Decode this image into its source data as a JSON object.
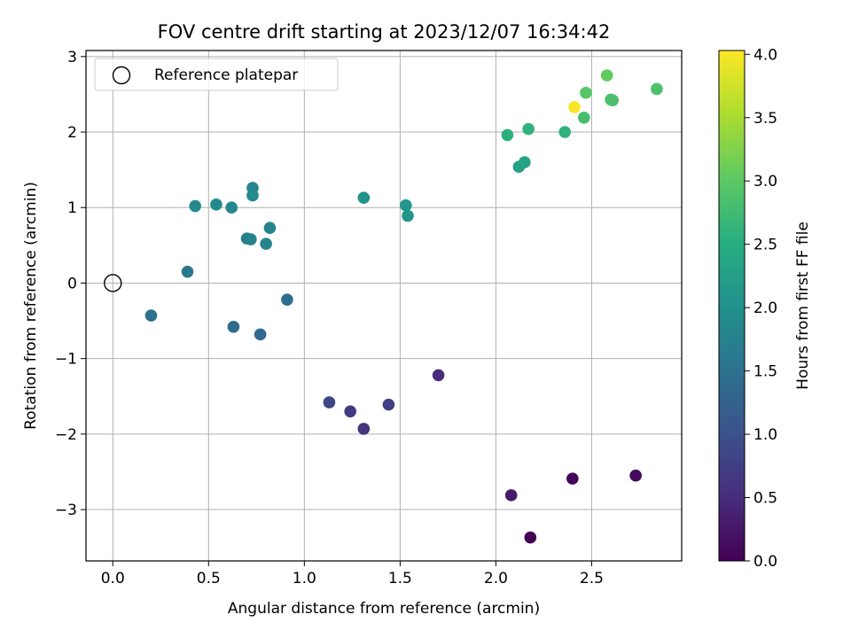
{
  "chart_data": {
    "type": "scatter",
    "title": "FOV centre drift starting at 2023/12/07 16:34:42",
    "xlabel": "Angular distance from reference (arcmin)",
    "ylabel": "Rotation from reference (arcmin)",
    "xlim": [
      -0.14,
      2.97
    ],
    "ylim": [
      -3.68,
      3.08
    ],
    "xticks": [
      0.0,
      0.5,
      1.0,
      1.5,
      2.0,
      2.5
    ],
    "xtick_labels": [
      "0.0",
      "0.5",
      "1.0",
      "1.5",
      "2.0",
      "2.5"
    ],
    "yticks": [
      -3,
      -2,
      -1,
      0,
      1,
      2,
      3
    ],
    "ytick_labels": [
      "−3",
      "−2",
      "−1",
      "0",
      "1",
      "2",
      "3"
    ],
    "grid": true,
    "legend": {
      "placement": "top-left",
      "entries": [
        {
          "label": "Reference platepar",
          "marker": "open-circle"
        }
      ]
    },
    "reference_point": {
      "x": 0.0,
      "y": 0.0
    },
    "colorbar": {
      "label": "Hours from first FF file",
      "colormap": "viridis",
      "range": [
        0.0,
        4.03
      ],
      "ticks": [
        0.0,
        0.5,
        1.0,
        1.5,
        2.0,
        2.5,
        3.0,
        3.5,
        4.0
      ],
      "tick_labels": [
        "0.0",
        "0.5",
        "1.0",
        "1.5",
        "2.0",
        "2.5",
        "3.0",
        "3.5",
        "4.0"
      ]
    },
    "points": [
      {
        "x": 2.18,
        "y": -3.37,
        "c": 0.0
      },
      {
        "x": 2.4,
        "y": -2.59,
        "c": 0.05
      },
      {
        "x": 2.73,
        "y": -2.55,
        "c": 0.1
      },
      {
        "x": 2.08,
        "y": -2.81,
        "c": 0.3
      },
      {
        "x": 1.7,
        "y": -1.22,
        "c": 0.5
      },
      {
        "x": 1.31,
        "y": -1.93,
        "c": 0.6
      },
      {
        "x": 1.24,
        "y": -1.7,
        "c": 0.7
      },
      {
        "x": 1.44,
        "y": -1.61,
        "c": 0.75
      },
      {
        "x": 1.13,
        "y": -1.58,
        "c": 0.85
      },
      {
        "x": 0.77,
        "y": -0.68,
        "c": 1.35
      },
      {
        "x": 0.63,
        "y": -0.58,
        "c": 1.4
      },
      {
        "x": 0.91,
        "y": -0.22,
        "c": 1.45
      },
      {
        "x": 0.2,
        "y": -0.43,
        "c": 1.5
      },
      {
        "x": 0.39,
        "y": 0.15,
        "c": 1.6
      },
      {
        "x": 0.7,
        "y": 0.59,
        "c": 1.7
      },
      {
        "x": 0.72,
        "y": 0.58,
        "c": 1.75
      },
      {
        "x": 0.8,
        "y": 0.52,
        "c": 1.8
      },
      {
        "x": 0.82,
        "y": 0.73,
        "c": 1.8
      },
      {
        "x": 0.62,
        "y": 1.0,
        "c": 1.85
      },
      {
        "x": 0.73,
        "y": 1.26,
        "c": 1.85
      },
      {
        "x": 0.43,
        "y": 1.02,
        "c": 1.9
      },
      {
        "x": 0.54,
        "y": 1.04,
        "c": 1.9
      },
      {
        "x": 0.73,
        "y": 1.16,
        "c": 1.9
      },
      {
        "x": 1.31,
        "y": 1.13,
        "c": 2.05
      },
      {
        "x": 1.53,
        "y": 1.03,
        "c": 2.1
      },
      {
        "x": 1.54,
        "y": 0.89,
        "c": 2.1
      },
      {
        "x": 2.12,
        "y": 1.54,
        "c": 2.3
      },
      {
        "x": 2.15,
        "y": 1.6,
        "c": 2.35
      },
      {
        "x": 2.06,
        "y": 1.96,
        "c": 2.55
      },
      {
        "x": 2.17,
        "y": 2.04,
        "c": 2.6
      },
      {
        "x": 2.36,
        "y": 2.0,
        "c": 2.6
      },
      {
        "x": 2.46,
        "y": 2.19,
        "c": 2.8
      },
      {
        "x": 2.61,
        "y": 2.42,
        "c": 2.85
      },
      {
        "x": 2.6,
        "y": 2.43,
        "c": 2.85
      },
      {
        "x": 2.84,
        "y": 2.57,
        "c": 2.85
      },
      {
        "x": 2.47,
        "y": 2.52,
        "c": 2.95
      },
      {
        "x": 2.58,
        "y": 2.75,
        "c": 3.05
      },
      {
        "x": 2.41,
        "y": 2.33,
        "c": 4.0
      }
    ]
  }
}
